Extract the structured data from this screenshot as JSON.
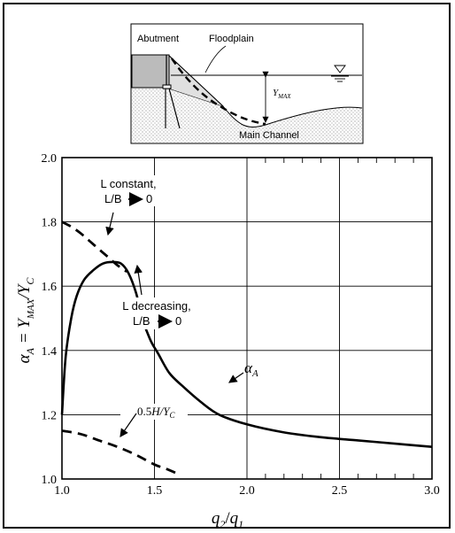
{
  "inset": {
    "labels": {
      "abutment": "Abutment",
      "floodplain": "Floodplain",
      "ymax": "Y",
      "ymax_sub": "MAX",
      "channel": "Main Channel"
    }
  },
  "chart_data": {
    "type": "line",
    "xlim": [
      1.0,
      3.0
    ],
    "ylim": [
      1.0,
      2.0
    ],
    "grid": true,
    "x_ticks": [
      "1.0",
      "1.5",
      "2.0",
      "2.5",
      "3.0"
    ],
    "y_ticks": [
      "1.0",
      "1.2",
      "1.4",
      "1.6",
      "1.8",
      "2.0"
    ],
    "xlabel": {
      "a": "q",
      "a_sub": "2",
      "slash": "/",
      "b": "q",
      "b_sub": "1"
    },
    "ylabel": {
      "alpha": "α",
      "alpha_sub": "A",
      "eq": " = Y",
      "y_sub": "MAX",
      "slash": "/Y",
      "yc_sub": "C"
    },
    "series": [
      {
        "name": "αA",
        "style": "solid",
        "x": [
          1.0,
          1.02,
          1.05,
          1.08,
          1.12,
          1.17,
          1.22,
          1.27,
          1.32,
          1.36,
          1.4,
          1.44,
          1.48,
          1.52,
          1.58,
          1.65,
          1.75,
          1.85,
          2.0,
          2.2,
          2.4,
          2.6,
          2.8,
          3.0
        ],
        "y": [
          1.2,
          1.38,
          1.5,
          1.57,
          1.62,
          1.65,
          1.67,
          1.675,
          1.67,
          1.64,
          1.58,
          1.49,
          1.43,
          1.39,
          1.33,
          1.29,
          1.24,
          1.2,
          1.17,
          1.145,
          1.13,
          1.12,
          1.11,
          1.1
        ]
      },
      {
        "name": "L constant",
        "style": "dashed",
        "x": [
          1.0,
          1.05,
          1.1,
          1.15,
          1.2,
          1.25,
          1.3,
          1.35
        ],
        "y": [
          1.8,
          1.785,
          1.765,
          1.74,
          1.715,
          1.69,
          1.665,
          1.645
        ]
      },
      {
        "name": "0.5H/YC",
        "style": "dashed",
        "x": [
          1.0,
          1.1,
          1.2,
          1.3,
          1.4,
          1.5,
          1.57,
          1.63
        ],
        "y": [
          1.15,
          1.14,
          1.12,
          1.1,
          1.075,
          1.045,
          1.03,
          1.015
        ]
      }
    ],
    "annotations": {
      "l_constant_1": "L constant,",
      "l_constant_2": "L/B",
      "arrow_zero_1": "0",
      "l_decreasing_1": "L decreasing,",
      "l_decreasing_2": "L/B",
      "arrow_zero_2": "0",
      "alpha_label": "α",
      "alpha_label_sub": "A",
      "half_h": "0.5",
      "half_h_h": "H",
      "half_h_y": "/Y",
      "half_h_sub": "C"
    }
  }
}
